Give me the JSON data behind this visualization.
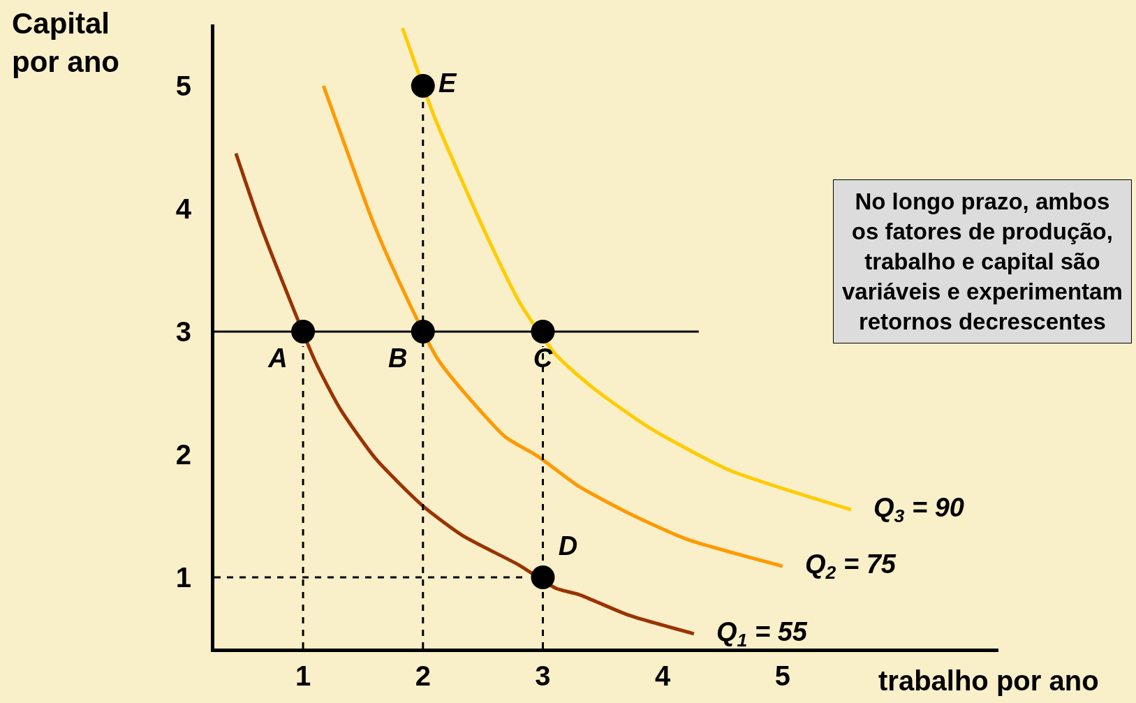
{
  "chart_data": {
    "type": "line",
    "xlabel": "trabalho por ano",
    "ylabel": "Capital\npor ano",
    "xlim": [
      0.26,
      6.8
    ],
    "ylim": [
      0.42,
      5.5
    ],
    "xticks": [
      1,
      2,
      3,
      4,
      5
    ],
    "yticks": [
      1,
      2,
      3,
      4,
      5
    ],
    "grid": false,
    "marker": "none",
    "line_style": "solid",
    "series": [
      {
        "name": "Q$_{1}$ = 55",
        "color": "#993300",
        "x": [
          0.44,
          0.64,
          0.86,
          1.1,
          1.31,
          1.61,
          2.0,
          2.33,
          2.8,
          3.11,
          3.3,
          3.72,
          4.26
        ],
        "values": [
          4.45,
          3.88,
          3.33,
          2.76,
          2.37,
          1.96,
          1.58,
          1.34,
          1.1,
          0.91,
          0.86,
          0.69,
          0.54
        ]
      },
      {
        "name": "Q$_{2}$ = 75",
        "color": "#ff9900",
        "x": [
          1.17,
          1.37,
          1.58,
          1.79,
          2.12,
          2.33,
          2.69,
          2.95,
          3.3,
          3.72,
          4.2,
          5.0
        ],
        "values": [
          5.0,
          4.46,
          3.9,
          3.43,
          2.78,
          2.52,
          2.14,
          1.99,
          1.74,
          1.52,
          1.31,
          1.09
        ]
      },
      {
        "name": "Q$_{3}$ = 90",
        "color": "#ffcc00",
        "x": [
          1.83,
          2.09,
          2.27,
          2.57,
          2.81,
          3.11,
          3.42,
          3.9,
          4.56,
          5.57
        ],
        "values": [
          5.47,
          4.76,
          4.35,
          3.7,
          3.23,
          2.81,
          2.54,
          2.21,
          1.87,
          1.55
        ]
      },
      {
        "type": "line",
        "color": "#000000",
        "x": [
          0.26,
          4.3
        ],
        "values": [
          3,
          3
        ]
      },
      {
        "type": "line",
        "color": "#000000",
        "line_style": "dashed",
        "x": [
          1,
          1
        ],
        "values": [
          0.42,
          2.88
        ]
      },
      {
        "type": "line",
        "color": "#000000",
        "line_style": "dashed",
        "x": [
          2,
          2
        ],
        "values": [
          0.42,
          4.88
        ]
      },
      {
        "type": "line",
        "color": "#000000",
        "line_style": "dashed",
        "x": [
          3,
          3
        ],
        "values": [
          0.42,
          2.88
        ]
      },
      {
        "type": "line",
        "color": "#000000",
        "line_style": "dashed",
        "x": [
          0.26,
          2.85
        ],
        "values": [
          1,
          1
        ]
      },
      {
        "type": "scatter",
        "color": "#000000",
        "marker": "circle",
        "x": [
          1,
          2,
          3,
          3,
          2
        ],
        "values": [
          3,
          3,
          3,
          1,
          5
        ],
        "value_labels": [
          "A",
          "B",
          "C",
          "D",
          "E"
        ]
      }
    ],
    "annotations": [
      "No longo prazo, ambos\nos fatores de produção,\ntrabalho e capital são\nvariáveis e experimentam\nretornos decrescentes"
    ]
  }
}
